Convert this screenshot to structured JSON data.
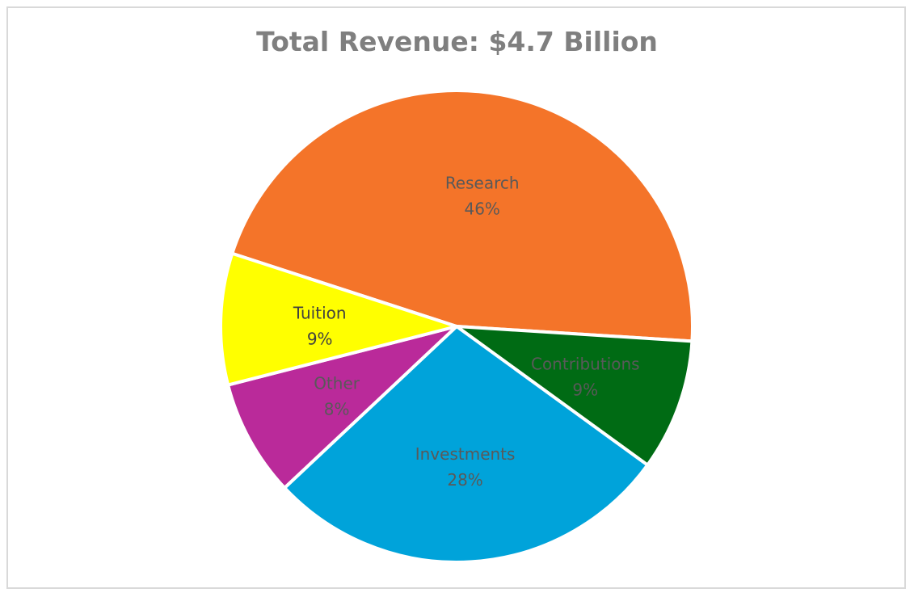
{
  "chart_data": {
    "type": "pie",
    "title": "Total Revenue: $4.7 Billion",
    "slices": [
      {
        "label": "Research",
        "value": 46,
        "pct_label": "46%",
        "color": "#F47429",
        "text_color": "#595959"
      },
      {
        "label": "Contributions",
        "value": 9,
        "pct_label": "9%",
        "color": "#006B14",
        "text_color": "#595959"
      },
      {
        "label": "Investments",
        "value": 28,
        "pct_label": "28%",
        "color": "#00A3DA",
        "text_color": "#595959"
      },
      {
        "label": "Other",
        "value": 8,
        "pct_label": "8%",
        "color": "#BA2A9A",
        "text_color": "#595959"
      },
      {
        "label": "Tuition",
        "value": 9,
        "pct_label": "9%",
        "color": "#FFFF00",
        "text_color": "#404040"
      }
    ]
  }
}
